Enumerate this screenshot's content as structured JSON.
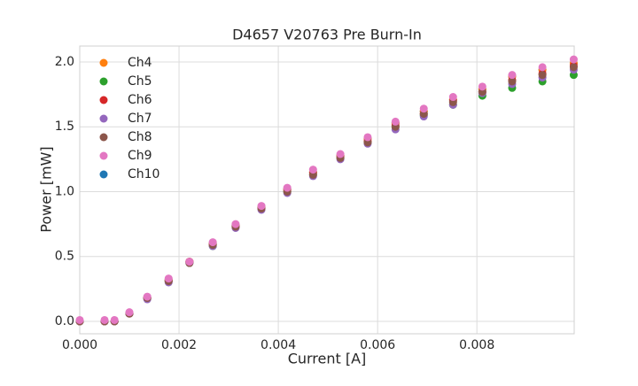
{
  "chart_data": {
    "type": "scatter",
    "title": "D4657 V20763 Pre Burn-In",
    "x_label": "Current [A]",
    "y_label": "Power [mW]",
    "x": [
      0,
      0.0005,
      0.0007,
      0.001,
      0.00136,
      0.00179,
      0.00221,
      0.00268,
      0.00314,
      0.00366,
      0.00418,
      0.0047,
      0.00525,
      0.0058,
      0.00636,
      0.00693,
      0.00752,
      0.00811,
      0.00871,
      0.00932,
      0.00995
    ],
    "series": [
      {
        "name": "Ch4",
        "color": "#ff7f0e",
        "values": [
          0.0,
          0.0,
          0.0,
          0.06,
          0.18,
          0.32,
          0.46,
          0.6,
          0.74,
          0.88,
          1.02,
          1.15,
          1.28,
          1.41,
          1.53,
          1.62,
          1.71,
          1.79,
          1.89,
          1.94,
          1.99
        ]
      },
      {
        "name": "Ch5",
        "color": "#2ca02c",
        "values": [
          0.0,
          0.0,
          0.0,
          0.06,
          0.18,
          0.31,
          0.45,
          0.58,
          0.73,
          0.87,
          1.0,
          1.13,
          1.26,
          1.38,
          1.5,
          1.59,
          1.67,
          1.74,
          1.8,
          1.85,
          1.9
        ]
      },
      {
        "name": "Ch6",
        "color": "#d62728",
        "values": [
          0.0,
          0.0,
          0.0,
          0.06,
          0.18,
          0.31,
          0.46,
          0.59,
          0.73,
          0.87,
          1.01,
          1.14,
          1.27,
          1.39,
          1.51,
          1.6,
          1.7,
          1.77,
          1.86,
          1.91,
          1.97
        ]
      },
      {
        "name": "Ch7",
        "color": "#9467bd",
        "values": [
          0.0,
          0.0,
          0.0,
          0.06,
          0.17,
          0.3,
          0.45,
          0.58,
          0.72,
          0.86,
          0.99,
          1.12,
          1.25,
          1.37,
          1.48,
          1.58,
          1.67,
          1.76,
          1.83,
          1.88,
          1.94
        ]
      },
      {
        "name": "Ch8",
        "color": "#8c564b",
        "values": [
          0.0,
          0.0,
          0.0,
          0.06,
          0.18,
          0.31,
          0.45,
          0.59,
          0.73,
          0.87,
          1.0,
          1.13,
          1.26,
          1.38,
          1.5,
          1.6,
          1.69,
          1.77,
          1.85,
          1.9,
          1.96
        ]
      },
      {
        "name": "Ch9",
        "color": "#e377c2",
        "values": [
          0.01,
          0.01,
          0.01,
          0.07,
          0.19,
          0.33,
          0.46,
          0.61,
          0.75,
          0.89,
          1.03,
          1.17,
          1.29,
          1.42,
          1.54,
          1.64,
          1.73,
          1.81,
          1.9,
          1.96,
          2.02
        ]
      },
      {
        "name": "Ch10",
        "color": "#1f77b4",
        "values": [
          0.0,
          0.0,
          0.0,
          0.06,
          0.18,
          0.32,
          0.46,
          0.6,
          0.74,
          0.88,
          1.02,
          1.15,
          1.28,
          1.41,
          1.53,
          1.62,
          1.71,
          1.79,
          1.89,
          1.94,
          1.99
        ]
      }
    ],
    "xlim": [
      0,
      0.00996
    ],
    "ylim": [
      -0.096,
      2.123
    ],
    "xticks": [
      {
        "value": 0,
        "label": "0.000"
      },
      {
        "value": 0.002,
        "label": "0.002"
      },
      {
        "value": 0.004,
        "label": "0.004"
      },
      {
        "value": 0.006,
        "label": "0.006"
      },
      {
        "value": 0.008,
        "label": "0.008"
      }
    ],
    "yticks": [
      {
        "value": 0,
        "label": "0.0"
      },
      0.5,
      {
        "value": 1,
        "label": "1.0"
      },
      1.5,
      {
        "value": 2,
        "label": "2.0"
      }
    ],
    "grid": true,
    "legend": "upper left"
  }
}
